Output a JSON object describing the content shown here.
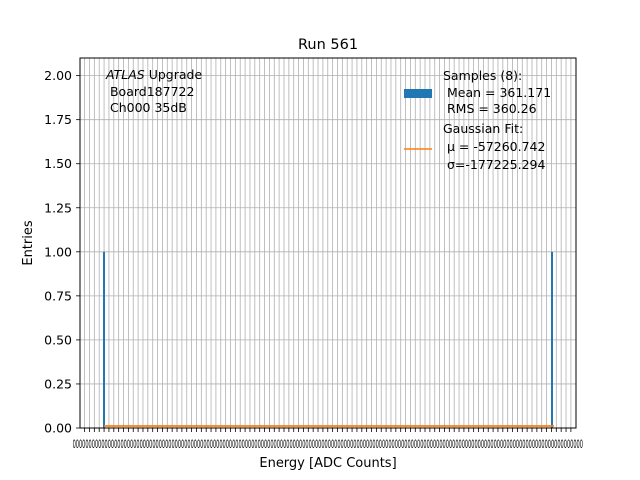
{
  "chart_data": {
    "type": "bar",
    "title": "Run 561",
    "xlabel": "Energy [ADC Counts]",
    "ylabel": "Entries",
    "ylim": [
      0,
      2.1
    ],
    "yticks": [
      "0.00",
      "0.25",
      "0.50",
      "0.75",
      "1.00",
      "1.25",
      "1.50",
      "1.75",
      "2.00"
    ],
    "grid": true,
    "x_tick_labels_note": "overlapping, illegible",
    "xlim": [
      -9.5,
      1010.5
    ],
    "series": [
      {
        "name": "Samples (8):",
        "kind": "histogram",
        "color": "#1f77b4",
        "bins": [
          {
            "x": 0,
            "value": 1
          },
          {
            "x": 1020,
            "value": 1
          }
        ]
      },
      {
        "name": "Gaussian Fit:",
        "kind": "line",
        "color": "#ff7f0e",
        "y_constant": 0.0
      }
    ],
    "annotation": {
      "italic": "ATLAS",
      "line1_rest": " Upgrade",
      "line2": " Board187722",
      "line3": " Ch000 35dB"
    },
    "legend": {
      "position": "top-right",
      "hist_title": "Samples (8):",
      "hist_mean": " Mean = 361.171",
      "hist_rms": " RMS = 360.26",
      "fit_title": "Gaussian Fit:",
      "fit_mu": " μ = -57260.742",
      "fit_sigma": " σ=-177225.294"
    }
  }
}
